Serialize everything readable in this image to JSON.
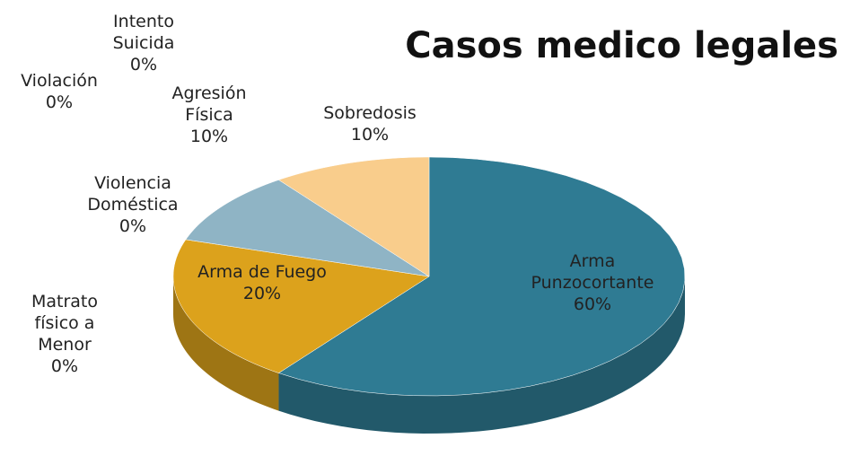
{
  "chart_data": {
    "type": "pie3d",
    "title": "Casos medico legales",
    "categories": [
      "Arma Punzocortante",
      "Matrato físico a Menor",
      "Arma de Fuego",
      "Violencia Doméstica",
      "Agresión Física",
      "Violación",
      "Intento Suicida",
      "Sobredosis"
    ],
    "values": [
      60,
      0,
      20,
      0,
      10,
      0,
      0,
      10
    ],
    "value_labels": [
      "60%",
      "0%",
      "20%",
      "0%",
      "10%",
      "0%",
      "0%",
      "10%"
    ],
    "colors": [
      "#2f7b93",
      "#5a6fa0",
      "#dca21c",
      "#9c5b9c",
      "#8fb4c5",
      "#b04a4a",
      "#6a9a5a",
      "#f9cd8c"
    ]
  }
}
